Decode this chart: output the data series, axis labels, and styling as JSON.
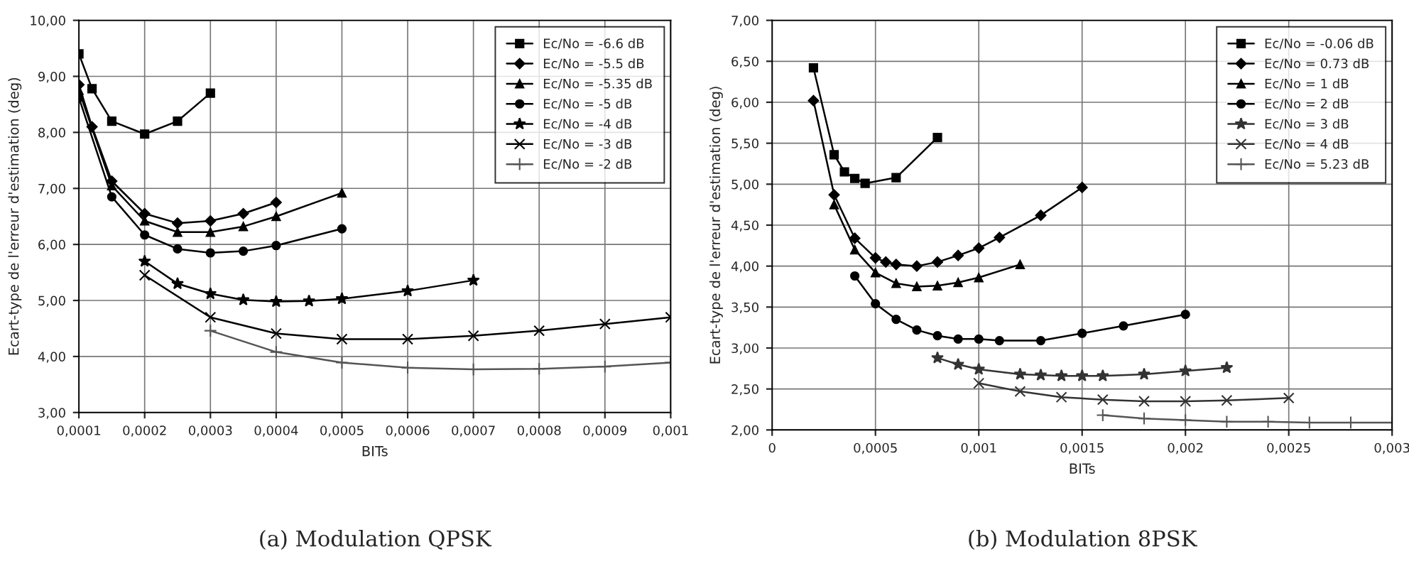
{
  "chart_data": [
    {
      "type": "line",
      "xlabel": "BITs",
      "ylabel": "Ecart-type de l'erreur d'estimation (deg)",
      "grid": true,
      "legend": "top right",
      "annotations": [
        "(a) Modulation QPSK"
      ],
      "xlim": [
        0.0001,
        0.001
      ],
      "ylim": [
        3,
        10
      ],
      "xticks": [
        {
          "value": 0.0001,
          "label": "0,0001"
        },
        {
          "value": 0.0002,
          "label": "0,0002"
        },
        {
          "value": 0.0003,
          "label": "0,0003"
        },
        {
          "value": 0.0004,
          "label": "0,0004"
        },
        {
          "value": 0.0005,
          "label": "0,0005"
        },
        {
          "value": 0.0006,
          "label": "0,0006"
        },
        {
          "value": 0.0007,
          "label": "0,0007"
        },
        {
          "value": 0.0008,
          "label": "0,0008"
        },
        {
          "value": 0.0009,
          "label": "0,0009"
        },
        {
          "value": 0.001,
          "label": "0,001"
        }
      ],
      "yticks": [
        {
          "value": 3,
          "label": "3,00"
        },
        {
          "value": 4,
          "label": "4,00"
        },
        {
          "value": 5,
          "label": "5,00"
        },
        {
          "value": 6,
          "label": "6,00"
        },
        {
          "value": 7,
          "label": "7,00"
        },
        {
          "value": 8,
          "label": "8,00"
        },
        {
          "value": 9,
          "label": "9,00"
        },
        {
          "value": 10,
          "label": "10,00"
        }
      ],
      "series": [
        {
          "name": "Ec/No = -6.6 dB",
          "color": "#000000",
          "marker": "square",
          "x": [
            0.0001,
            0.00012,
            0.00015,
            0.0002,
            0.00025,
            0.0003
          ],
          "values": [
            9.4,
            8.78,
            8.2,
            7.97,
            8.2,
            8.7
          ]
        },
        {
          "name": "Ec/No = -5.5 dB",
          "color": "#000000",
          "marker": "diamond",
          "x": [
            0.0001,
            0.00012,
            0.00015,
            0.0002,
            0.00025,
            0.0003,
            0.00035,
            0.0004
          ],
          "values": [
            8.85,
            8.1,
            7.13,
            6.55,
            6.38,
            6.42,
            6.55,
            6.75
          ]
        },
        {
          "name": "Ec/No = -5.35 dB",
          "color": "#000000",
          "marker": "triangle",
          "x": [
            0.0001,
            0.00015,
            0.0002,
            0.00025,
            0.0003,
            0.00035,
            0.0004,
            0.0005
          ],
          "values": [
            8.75,
            7.05,
            6.42,
            6.22,
            6.22,
            6.32,
            6.5,
            6.92
          ]
        },
        {
          "name": "Ec/No = -5 dB",
          "color": "#000000",
          "marker": "circle",
          "x": [
            0.0001,
            0.00015,
            0.0002,
            0.00025,
            0.0003,
            0.00035,
            0.0004,
            0.0005
          ],
          "values": [
            8.62,
            6.85,
            6.17,
            5.92,
            5.85,
            5.88,
            5.98,
            6.28
          ]
        },
        {
          "name": "Ec/No = -4 dB",
          "color": "#000000",
          "marker": "star",
          "x": [
            0.0002,
            0.00025,
            0.0003,
            0.00035,
            0.0004,
            0.00045,
            0.0005,
            0.0006,
            0.0007
          ],
          "values": [
            5.7,
            5.3,
            5.12,
            5.01,
            4.98,
            4.99,
            5.03,
            5.17,
            5.36
          ]
        },
        {
          "name": "Ec/No = -3 dB",
          "color": "#000000",
          "marker": "cross",
          "x": [
            0.0002,
            0.0003,
            0.0004,
            0.0005,
            0.0006,
            0.0007,
            0.0008,
            0.0009,
            0.001
          ],
          "values": [
            5.45,
            4.7,
            4.41,
            4.31,
            4.31,
            4.37,
            4.46,
            4.58,
            4.7
          ]
        },
        {
          "name": "Ec/No = -2 dB",
          "color": "#555555",
          "marker": "plus",
          "x": [
            0.0003,
            0.0004,
            0.0005,
            0.0006,
            0.0007,
            0.0008,
            0.0009,
            0.001
          ],
          "values": [
            4.46,
            4.08,
            3.89,
            3.8,
            3.77,
            3.78,
            3.82,
            3.89
          ]
        }
      ]
    },
    {
      "type": "line",
      "xlabel": "BITs",
      "ylabel": "Ecart-type de l'erreur d'estimation (deg)",
      "grid": true,
      "legend": "top right",
      "annotations": [
        "(b) Modulation 8PSK"
      ],
      "xlim": [
        0,
        0.003
      ],
      "ylim": [
        2,
        7
      ],
      "xticks": [
        0,
        {
          "value": 0.0005,
          "label": "0,0005"
        },
        {
          "value": 0.001,
          "label": "0,001"
        },
        {
          "value": 0.0015,
          "label": "0,0015"
        },
        {
          "value": 0.002,
          "label": "0,002"
        },
        {
          "value": 0.0025,
          "label": "0,0025"
        },
        {
          "value": 0.003,
          "label": "0,003"
        }
      ],
      "yticks": [
        {
          "value": 2,
          "label": "2,00"
        },
        {
          "value": 2.5,
          "label": "2,50"
        },
        {
          "value": 3,
          "label": "3,00"
        },
        {
          "value": 3.5,
          "label": "3,50"
        },
        {
          "value": 4,
          "label": "4,00"
        },
        {
          "value": 4.5,
          "label": "4,50"
        },
        {
          "value": 5,
          "label": "5,00"
        },
        {
          "value": 5.5,
          "label": "5,50"
        },
        {
          "value": 6,
          "label": "6,00"
        },
        {
          "value": 6.5,
          "label": "6,50"
        },
        {
          "value": 7,
          "label": "7,00"
        }
      ],
      "series": [
        {
          "name": "Ec/No = -0.06 dB",
          "color": "#000000",
          "marker": "square",
          "x": [
            0.0002,
            0.0003,
            0.00035,
            0.0004,
            0.00045,
            0.0006,
            0.0008
          ],
          "values": [
            6.42,
            5.36,
            5.15,
            5.07,
            5.01,
            5.08,
            5.57
          ]
        },
        {
          "name": "Ec/No = 0.73 dB",
          "color": "#000000",
          "marker": "diamond",
          "x": [
            0.0002,
            0.0003,
            0.0004,
            0.0005,
            0.00055,
            0.0006,
            0.0007,
            0.0008,
            0.0009,
            0.001,
            0.0011,
            0.0013,
            0.0015
          ],
          "values": [
            6.02,
            4.87,
            4.34,
            4.1,
            4.05,
            4.02,
            4.0,
            4.05,
            4.13,
            4.22,
            4.35,
            4.62,
            4.96
          ]
        },
        {
          "name": "Ec/No = 1 dB",
          "color": "#000000",
          "marker": "triangle",
          "x": [
            0.0003,
            0.0004,
            0.0005,
            0.0006,
            0.0007,
            0.0008,
            0.0009,
            0.001,
            0.0012
          ],
          "values": [
            4.75,
            4.2,
            3.92,
            3.79,
            3.75,
            3.76,
            3.8,
            3.86,
            4.02
          ]
        },
        {
          "name": "Ec/No = 2 dB",
          "color": "#000000",
          "marker": "circle",
          "x": [
            0.0004,
            0.0005,
            0.0006,
            0.0007,
            0.0008,
            0.0009,
            0.001,
            0.0011,
            0.0013,
            0.0015,
            0.0017,
            0.002
          ],
          "values": [
            3.88,
            3.54,
            3.35,
            3.22,
            3.15,
            3.11,
            3.11,
            3.09,
            3.09,
            3.18,
            3.27,
            3.41
          ]
        },
        {
          "name": "Ec/No = 3 dB",
          "color": "#333333",
          "marker": "star",
          "x": [
            0.0008,
            0.0009,
            0.001,
            0.0012,
            0.0013,
            0.0014,
            0.0015,
            0.0016,
            0.0018,
            0.002,
            0.0022
          ],
          "values": [
            2.88,
            2.8,
            2.74,
            2.68,
            2.67,
            2.66,
            2.66,
            2.66,
            2.68,
            2.72,
            2.76
          ]
        },
        {
          "name": "Ec/No = 4 dB",
          "color": "#333333",
          "marker": "cross",
          "x": [
            0.001,
            0.0012,
            0.0014,
            0.0016,
            0.0018,
            0.002,
            0.0022,
            0.0025
          ],
          "values": [
            2.57,
            2.47,
            2.4,
            2.37,
            2.35,
            2.35,
            2.36,
            2.39
          ]
        },
        {
          "name": "Ec/No = 5.23 dB",
          "color": "#555555",
          "marker": "plus",
          "x": [
            0.0016,
            0.0018,
            0.002,
            0.0022,
            0.0024,
            0.0026,
            0.0028,
            0.003
          ],
          "values": [
            2.18,
            2.14,
            2.12,
            2.1,
            2.1,
            2.09,
            2.09,
            2.09
          ]
        }
      ]
    }
  ]
}
